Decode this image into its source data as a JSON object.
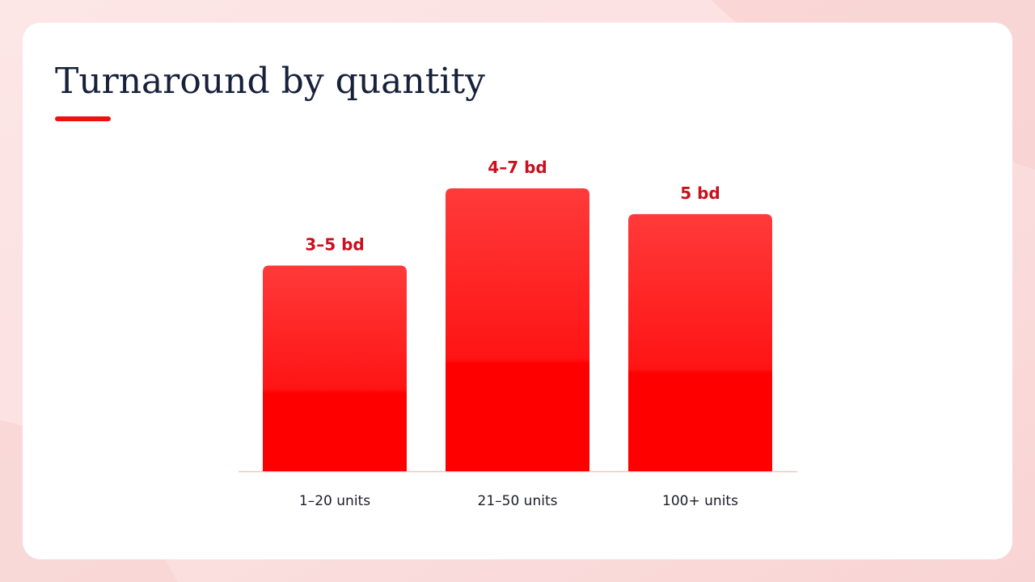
{
  "chart_data": {
    "type": "bar",
    "title": "Turnaround by quantity",
    "categories": [
      "1–20 units",
      "21–50 units",
      "100+ units"
    ],
    "values": [
      4,
      5.5,
      5
    ],
    "value_labels": [
      "3–5 bd",
      "4–7 bd",
      "5 bd"
    ],
    "color": "#ff0000"
  }
}
